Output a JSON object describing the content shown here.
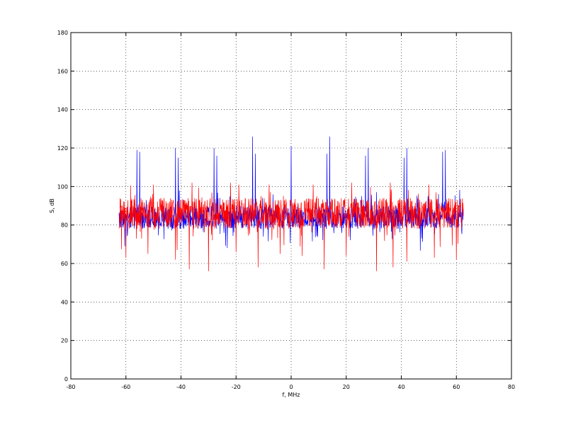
{
  "chart_data": {
    "type": "line",
    "title": "",
    "xlabel": "f, MHz",
    "ylabel": "S, dB",
    "xlim": [
      -80,
      80
    ],
    "ylim": [
      0,
      180
    ],
    "xticks": [
      -80,
      -60,
      -40,
      -20,
      0,
      20,
      40,
      60,
      80
    ],
    "yticks": [
      0,
      20,
      40,
      60,
      80,
      100,
      120,
      140,
      160,
      180
    ],
    "xtick_labels": [
      "-80",
      "-60",
      "-40",
      "-20",
      "0",
      "20",
      "40",
      "60",
      "80"
    ],
    "ytick_labels": [
      "0",
      "20",
      "40",
      "60",
      "80",
      "100",
      "120",
      "140",
      "160",
      "180"
    ],
    "grid": true,
    "legend": "none",
    "x_range": [
      -62.5,
      62.5
    ],
    "series": [
      {
        "color": "#0000ff",
        "baseline": 84,
        "spread": 6,
        "peaks": [
          {
            "x": -56,
            "y": 119
          },
          {
            "x": -55,
            "y": 118
          },
          {
            "x": -42,
            "y": 120
          },
          {
            "x": -41,
            "y": 115
          },
          {
            "x": -28,
            "y": 120
          },
          {
            "x": -27,
            "y": 116
          },
          {
            "x": -14,
            "y": 126
          },
          {
            "x": -13,
            "y": 117
          },
          {
            "x": 0,
            "y": 121
          },
          {
            "x": 13,
            "y": 117
          },
          {
            "x": 14,
            "y": 126
          },
          {
            "x": 27,
            "y": 116
          },
          {
            "x": 28,
            "y": 120
          },
          {
            "x": 41,
            "y": 115
          },
          {
            "x": 42,
            "y": 120
          },
          {
            "x": 55,
            "y": 118
          },
          {
            "x": 56,
            "y": 119
          }
        ]
      },
      {
        "color": "#ff0000",
        "baseline": 86,
        "spread": 8,
        "peaks": [
          {
            "x": -50,
            "y": 101
          },
          {
            "x": -36,
            "y": 102
          },
          {
            "x": -22,
            "y": 102
          },
          {
            "x": -8,
            "y": 101
          },
          {
            "x": 8,
            "y": 101
          },
          {
            "x": 22,
            "y": 102
          },
          {
            "x": 36,
            "y": 102
          },
          {
            "x": 50,
            "y": 101
          }
        ],
        "dips": [
          {
            "x": -60,
            "y": 63
          },
          {
            "x": -52,
            "y": 65
          },
          {
            "x": -42,
            "y": 62
          },
          {
            "x": -37,
            "y": 57
          },
          {
            "x": -30,
            "y": 56
          },
          {
            "x": -20,
            "y": 66
          },
          {
            "x": -12,
            "y": 58
          },
          {
            "x": -4,
            "y": 65
          },
          {
            "x": 4,
            "y": 64
          },
          {
            "x": 12,
            "y": 57
          },
          {
            "x": 20,
            "y": 64
          },
          {
            "x": 31,
            "y": 56
          },
          {
            "x": 37,
            "y": 58
          },
          {
            "x": 42,
            "y": 61
          },
          {
            "x": 52,
            "y": 63
          },
          {
            "x": 60,
            "y": 62
          }
        ]
      }
    ]
  }
}
